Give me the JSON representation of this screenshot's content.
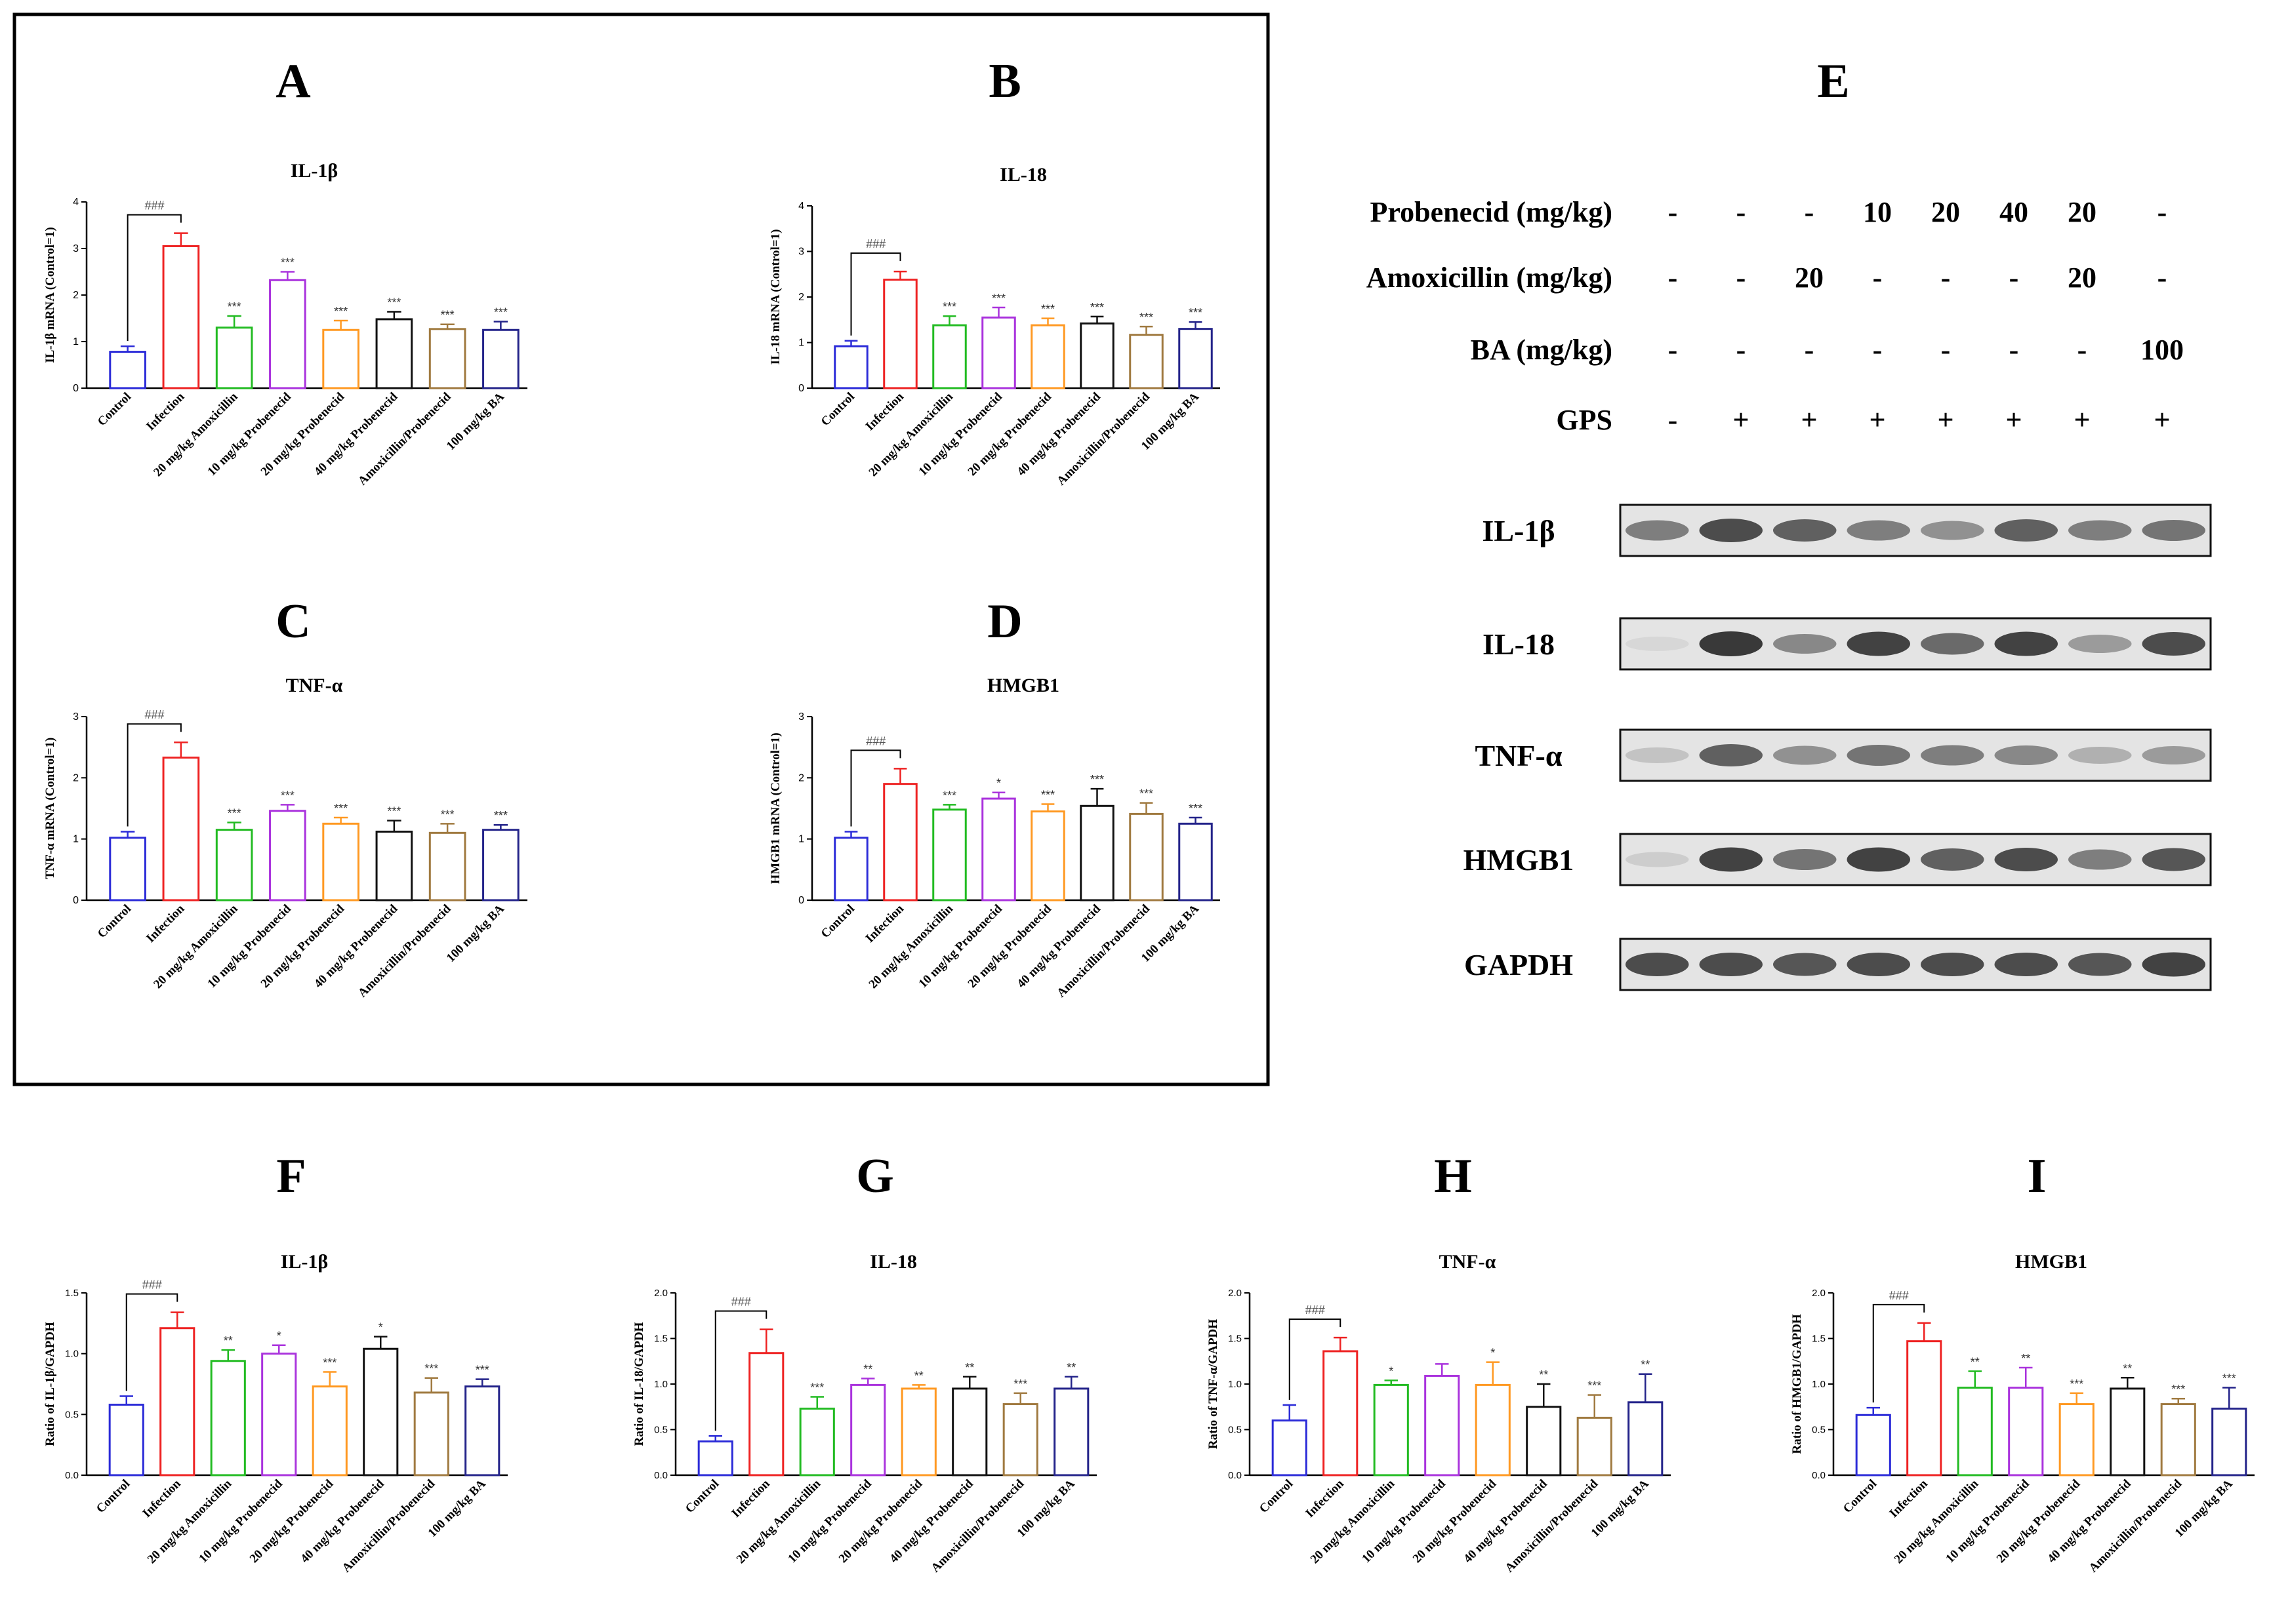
{
  "categories": [
    "Control",
    "Infection",
    "20 mg/kg Amoxicillin",
    "10 mg/kg Probenecid",
    "20 mg/kg Probenecid",
    "40 mg/kg Probenecid",
    "Amoxicillin/Probenecid",
    "100 mg/kg BA"
  ],
  "bar_colors": [
    "#2b2bd8",
    "#ee2222",
    "#22bb22",
    "#aa33dd",
    "#ff9922",
    "#111111",
    "#a07a40",
    "#24248a"
  ],
  "chart_data": [
    {
      "panel": "A",
      "type": "bar",
      "title": "IL-1β",
      "ylabel": "IL-1β mRNA (Control=1)",
      "ylim": [
        0,
        4
      ],
      "yticks": [
        "0",
        "1",
        "2",
        "3",
        "4"
      ],
      "values": [
        0.78,
        3.05,
        1.3,
        2.32,
        1.25,
        1.48,
        1.27,
        1.25
      ],
      "errors": [
        0.12,
        0.28,
        0.25,
        0.18,
        0.2,
        0.16,
        0.1,
        0.18
      ],
      "annotations": [
        "",
        "",
        "***",
        "***",
        "***",
        "***",
        "***",
        "***"
      ],
      "bracket": "###"
    },
    {
      "panel": "B",
      "type": "bar",
      "title": "IL-18",
      "ylabel": "IL-18 mRNA (Control=1)",
      "ylim": [
        0,
        4
      ],
      "yticks": [
        "0",
        "1",
        "2",
        "3",
        "4"
      ],
      "values": [
        0.92,
        2.38,
        1.38,
        1.55,
        1.38,
        1.42,
        1.17,
        1.3
      ],
      "errors": [
        0.12,
        0.18,
        0.2,
        0.22,
        0.15,
        0.15,
        0.18,
        0.15
      ],
      "annotations": [
        "",
        "",
        "***",
        "***",
        "***",
        "***",
        "***",
        "***"
      ],
      "bracket": "###"
    },
    {
      "panel": "C",
      "type": "bar",
      "title": "TNF-α",
      "ylabel": "TNF-α mRNA (Control=1)",
      "ylim": [
        0,
        3
      ],
      "yticks": [
        "0",
        "1",
        "2",
        "3"
      ],
      "values": [
        1.02,
        2.33,
        1.15,
        1.46,
        1.25,
        1.12,
        1.1,
        1.15
      ],
      "errors": [
        0.1,
        0.25,
        0.12,
        0.1,
        0.1,
        0.18,
        0.15,
        0.08
      ],
      "annotations": [
        "",
        "",
        "***",
        "***",
        "***",
        "***",
        "***",
        "***"
      ],
      "bracket": "###"
    },
    {
      "panel": "D",
      "type": "bar",
      "title": "HMGB1",
      "ylabel": "HMGB1 mRNA (Control=1)",
      "ylim": [
        0,
        3
      ],
      "yticks": [
        "0",
        "1",
        "2",
        "3"
      ],
      "values": [
        1.02,
        1.9,
        1.48,
        1.66,
        1.45,
        1.54,
        1.41,
        1.25
      ],
      "errors": [
        0.1,
        0.25,
        0.08,
        0.1,
        0.12,
        0.28,
        0.18,
        0.1
      ],
      "annotations": [
        "",
        "",
        "***",
        "*",
        "***",
        "***",
        "***",
        "***"
      ],
      "bracket": "###"
    },
    {
      "panel": "F",
      "type": "bar",
      "title": "IL-1β",
      "ylabel": "Ratio of IL-1β/GAPDH",
      "ylim": [
        0,
        1.5
      ],
      "yticks": [
        "0.0",
        "0.5",
        "1.0",
        "1.5"
      ],
      "values": [
        0.58,
        1.21,
        0.94,
        1.0,
        0.73,
        1.04,
        0.68,
        0.73
      ],
      "errors": [
        0.07,
        0.13,
        0.09,
        0.07,
        0.12,
        0.1,
        0.12,
        0.06
      ],
      "annotations": [
        "",
        "",
        "**",
        "*",
        "***",
        "*",
        "***",
        "***"
      ],
      "bracket": "###"
    },
    {
      "panel": "G",
      "type": "bar",
      "title": "IL-18",
      "ylabel": "Ratio of IL-18/GAPDH",
      "ylim": [
        0,
        2
      ],
      "yticks": [
        "0.0",
        "0.5",
        "1.0",
        "1.5",
        "2.0"
      ],
      "values": [
        0.37,
        1.34,
        0.73,
        0.99,
        0.95,
        0.95,
        0.78,
        0.95
      ],
      "errors": [
        0.06,
        0.26,
        0.13,
        0.07,
        0.04,
        0.13,
        0.12,
        0.13
      ],
      "annotations": [
        "",
        "",
        "***",
        "**",
        "**",
        "**",
        "***",
        "**"
      ],
      "bracket": "###"
    },
    {
      "panel": "H",
      "type": "bar",
      "title": "TNF-α",
      "ylabel": "Ratio of TNF-α/GAPDH",
      "ylim": [
        0,
        2
      ],
      "yticks": [
        "0.0",
        "0.5",
        "1.0",
        "1.5",
        "2.0"
      ],
      "values": [
        0.6,
        1.36,
        0.99,
        1.09,
        0.99,
        0.75,
        0.63,
        0.8
      ],
      "errors": [
        0.17,
        0.15,
        0.05,
        0.13,
        0.25,
        0.25,
        0.25,
        0.31
      ],
      "annotations": [
        "",
        "",
        "*",
        "",
        "*",
        "**",
        "***",
        "**"
      ],
      "bracket": "###"
    },
    {
      "panel": "I",
      "type": "bar",
      "title": "HMGB1",
      "ylabel": "Ratio of HMGB1/GAPDH",
      "ylim": [
        0,
        2
      ],
      "yticks": [
        "0.0",
        "0.5",
        "1.0",
        "1.5",
        "2.0"
      ],
      "values": [
        0.66,
        1.47,
        0.96,
        0.96,
        0.78,
        0.95,
        0.78,
        0.73
      ],
      "errors": [
        0.08,
        0.2,
        0.18,
        0.22,
        0.12,
        0.12,
        0.06,
        0.23
      ],
      "annotations": [
        "",
        "",
        "**",
        "**",
        "***",
        "**",
        "***",
        "***"
      ],
      "bracket": "###"
    }
  ],
  "western_blot": {
    "panel": "E",
    "treatment_labels": [
      "Probenecid (mg/kg)",
      "Amoxicillin (mg/kg)",
      "BA (mg/kg)",
      "GPS"
    ],
    "treatment_values": [
      [
        "-",
        "-",
        "-",
        "10",
        "20",
        "40",
        "20",
        "-"
      ],
      [
        "-",
        "-",
        "20",
        "-",
        "-",
        "-",
        "20",
        "-"
      ],
      [
        "-",
        "-",
        "-",
        "-",
        "-",
        "-",
        "-",
        "100"
      ],
      [
        "-",
        "+",
        "+",
        "+",
        "+",
        "+",
        "+",
        "+"
      ]
    ],
    "blots": [
      {
        "label": "IL-1β",
        "intensity": [
          0.55,
          0.8,
          0.7,
          0.55,
          0.45,
          0.7,
          0.55,
          0.6
        ]
      },
      {
        "label": "IL-18",
        "intensity": [
          0.1,
          0.9,
          0.5,
          0.85,
          0.65,
          0.85,
          0.4,
          0.8
        ]
      },
      {
        "label": "TNF-α",
        "intensity": [
          0.2,
          0.7,
          0.45,
          0.6,
          0.55,
          0.5,
          0.3,
          0.4
        ]
      },
      {
        "label": "HMGB1",
        "intensity": [
          0.15,
          0.85,
          0.6,
          0.85,
          0.7,
          0.8,
          0.55,
          0.75
        ]
      },
      {
        "label": "GAPDH",
        "intensity": [
          0.8,
          0.8,
          0.75,
          0.8,
          0.8,
          0.8,
          0.75,
          0.85
        ]
      }
    ]
  }
}
